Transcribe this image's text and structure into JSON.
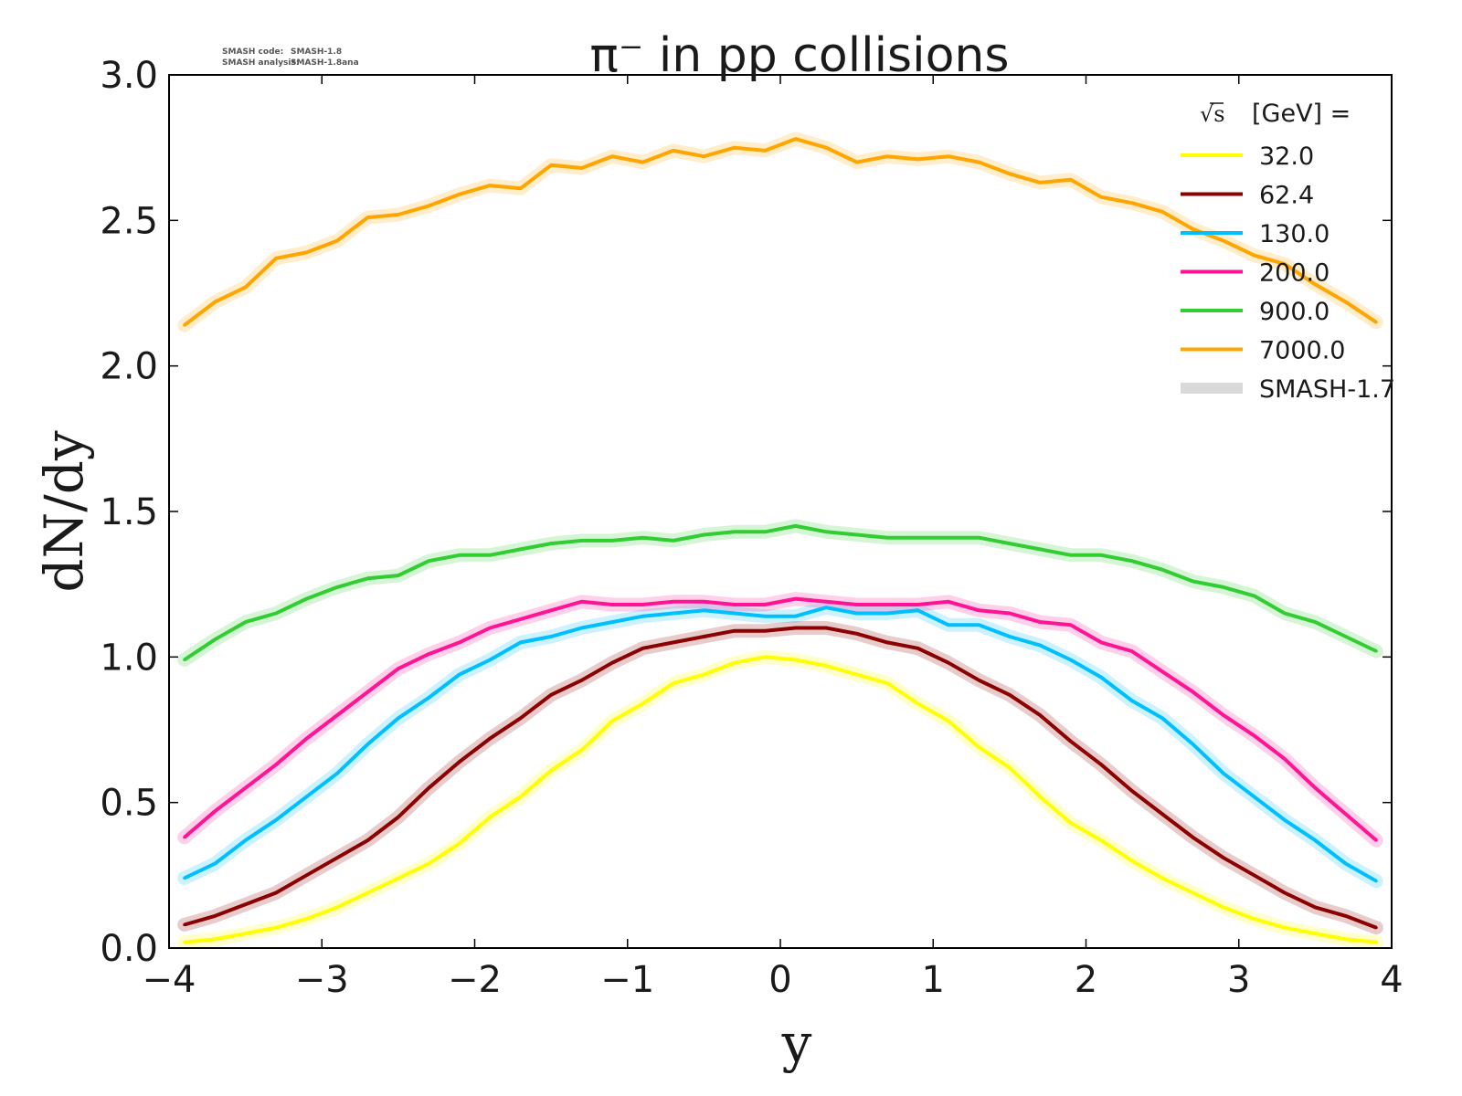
{
  "annotation": {
    "line1_label": "SMASH code:",
    "line1_value": "SMASH-1.8",
    "line2_label": "SMASH analysis:",
    "line2_value": "SMASH-1.8ana"
  },
  "chart_data": {
    "type": "line",
    "title": "π⁻ in pp collisions",
    "xlabel": "y",
    "ylabel": "dN/dy",
    "xlim": [
      -4,
      4
    ],
    "ylim": [
      0,
      3
    ],
    "xticks": [
      "−4",
      "−3",
      "−2",
      "−1",
      "0",
      "1",
      "2",
      "3",
      "4"
    ],
    "yticks": [
      "0.0",
      "0.5",
      "1.0",
      "1.5",
      "2.0",
      "2.5",
      "3.0"
    ],
    "grid": false,
    "legend_position": "top-right",
    "legend_title_root": "√s",
    "legend_title_rest": " [GeV] =",
    "reference_name": "SMASH-1.7",
    "reference_color": "#d9d9d9",
    "x": [
      -3.9,
      -3.7,
      -3.5,
      -3.3,
      -3.1,
      -2.9,
      -2.7,
      -2.5,
      -2.3,
      -2.1,
      -1.9,
      -1.7,
      -1.5,
      -1.3,
      -1.1,
      -0.9,
      -0.7,
      -0.5,
      -0.3,
      -0.1,
      0.1,
      0.3,
      0.5,
      0.7,
      0.9,
      1.1,
      1.3,
      1.5,
      1.7,
      1.9,
      2.1,
      2.3,
      2.5,
      2.7,
      2.9,
      3.1,
      3.3,
      3.5,
      3.7,
      3.9
    ],
    "series": [
      {
        "name": "32.0",
        "color": "#ffff00",
        "values": [
          0.02,
          0.03,
          0.05,
          0.07,
          0.1,
          0.14,
          0.19,
          0.24,
          0.29,
          0.36,
          0.45,
          0.52,
          0.61,
          0.68,
          0.78,
          0.84,
          0.91,
          0.94,
          0.98,
          1.0,
          0.99,
          0.97,
          0.94,
          0.91,
          0.84,
          0.78,
          0.69,
          0.62,
          0.52,
          0.43,
          0.37,
          0.3,
          0.24,
          0.19,
          0.14,
          0.1,
          0.07,
          0.05,
          0.03,
          0.02
        ]
      },
      {
        "name": "62.4",
        "color": "#8b0000",
        "values": [
          0.08,
          0.11,
          0.15,
          0.19,
          0.25,
          0.31,
          0.37,
          0.45,
          0.55,
          0.64,
          0.72,
          0.79,
          0.87,
          0.92,
          0.98,
          1.03,
          1.05,
          1.07,
          1.09,
          1.09,
          1.1,
          1.1,
          1.08,
          1.05,
          1.03,
          0.98,
          0.92,
          0.87,
          0.8,
          0.71,
          0.63,
          0.54,
          0.46,
          0.38,
          0.31,
          0.25,
          0.19,
          0.14,
          0.11,
          0.07
        ]
      },
      {
        "name": "130.0",
        "color": "#00bfff",
        "values": [
          0.24,
          0.29,
          0.37,
          0.44,
          0.52,
          0.6,
          0.7,
          0.79,
          0.86,
          0.94,
          0.99,
          1.05,
          1.07,
          1.1,
          1.12,
          1.14,
          1.15,
          1.16,
          1.15,
          1.14,
          1.14,
          1.17,
          1.15,
          1.15,
          1.16,
          1.11,
          1.11,
          1.07,
          1.04,
          0.99,
          0.93,
          0.85,
          0.79,
          0.7,
          0.6,
          0.52,
          0.44,
          0.37,
          0.29,
          0.23
        ]
      },
      {
        "name": "200.0",
        "color": "#ff1493",
        "values": [
          0.38,
          0.47,
          0.55,
          0.63,
          0.72,
          0.8,
          0.88,
          0.96,
          1.01,
          1.05,
          1.1,
          1.13,
          1.16,
          1.19,
          1.18,
          1.18,
          1.19,
          1.19,
          1.18,
          1.18,
          1.2,
          1.19,
          1.18,
          1.18,
          1.18,
          1.19,
          1.16,
          1.15,
          1.12,
          1.11,
          1.05,
          1.02,
          0.95,
          0.88,
          0.8,
          0.73,
          0.65,
          0.55,
          0.46,
          0.37
        ]
      },
      {
        "name": "900.0",
        "color": "#32cd32",
        "values": [
          0.99,
          1.06,
          1.12,
          1.15,
          1.2,
          1.24,
          1.27,
          1.28,
          1.33,
          1.35,
          1.35,
          1.37,
          1.39,
          1.4,
          1.4,
          1.41,
          1.4,
          1.42,
          1.43,
          1.43,
          1.45,
          1.43,
          1.42,
          1.41,
          1.41,
          1.41,
          1.41,
          1.39,
          1.37,
          1.35,
          1.35,
          1.33,
          1.3,
          1.26,
          1.24,
          1.21,
          1.15,
          1.12,
          1.07,
          1.02
        ]
      },
      {
        "name": "7000.0",
        "color": "#ffa500",
        "values": [
          2.14,
          2.22,
          2.27,
          2.37,
          2.39,
          2.43,
          2.51,
          2.52,
          2.55,
          2.59,
          2.62,
          2.61,
          2.69,
          2.68,
          2.72,
          2.7,
          2.74,
          2.72,
          2.75,
          2.74,
          2.78,
          2.75,
          2.7,
          2.72,
          2.71,
          2.72,
          2.7,
          2.66,
          2.63,
          2.64,
          2.58,
          2.56,
          2.53,
          2.47,
          2.43,
          2.38,
          2.35,
          2.28,
          2.22,
          2.15
        ]
      }
    ]
  }
}
